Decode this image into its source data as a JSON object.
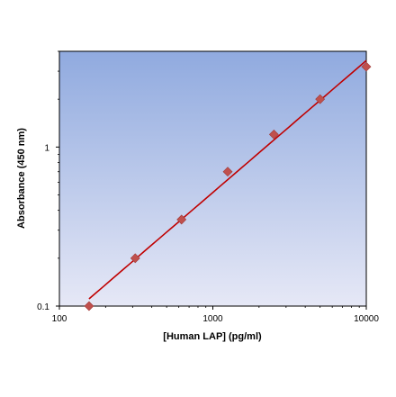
{
  "chart_data": {
    "type": "scatter",
    "xlabel": "[Human LAP] (pg/ml)",
    "ylabel": "Absorbance (450 nm)",
    "x_scale": "log",
    "y_scale": "log",
    "xlim": [
      100,
      10000
    ],
    "ylim": [
      0.1,
      4
    ],
    "x_ticks": [
      100,
      1000,
      10000
    ],
    "x_tick_labels": [
      "100",
      "1000",
      "10000"
    ],
    "y_ticks": [
      0.1,
      1
    ],
    "y_tick_labels": [
      "0.1",
      "1"
    ],
    "grid": false,
    "background": "vertical gradient, light lavender at bottom to periwinkle blue at top",
    "series": [
      {
        "marker": "diamond",
        "color": "#c0504d",
        "x": [
          156,
          312,
          625,
          1250,
          2500,
          5000,
          10000
        ],
        "y": [
          0.1,
          0.2,
          0.35,
          0.7,
          1.2,
          2.0,
          3.2
        ]
      }
    ],
    "fit_line": {
      "color": "#c00000",
      "x": [
        156,
        10000
      ],
      "y": [
        0.111,
        3.5
      ]
    }
  }
}
